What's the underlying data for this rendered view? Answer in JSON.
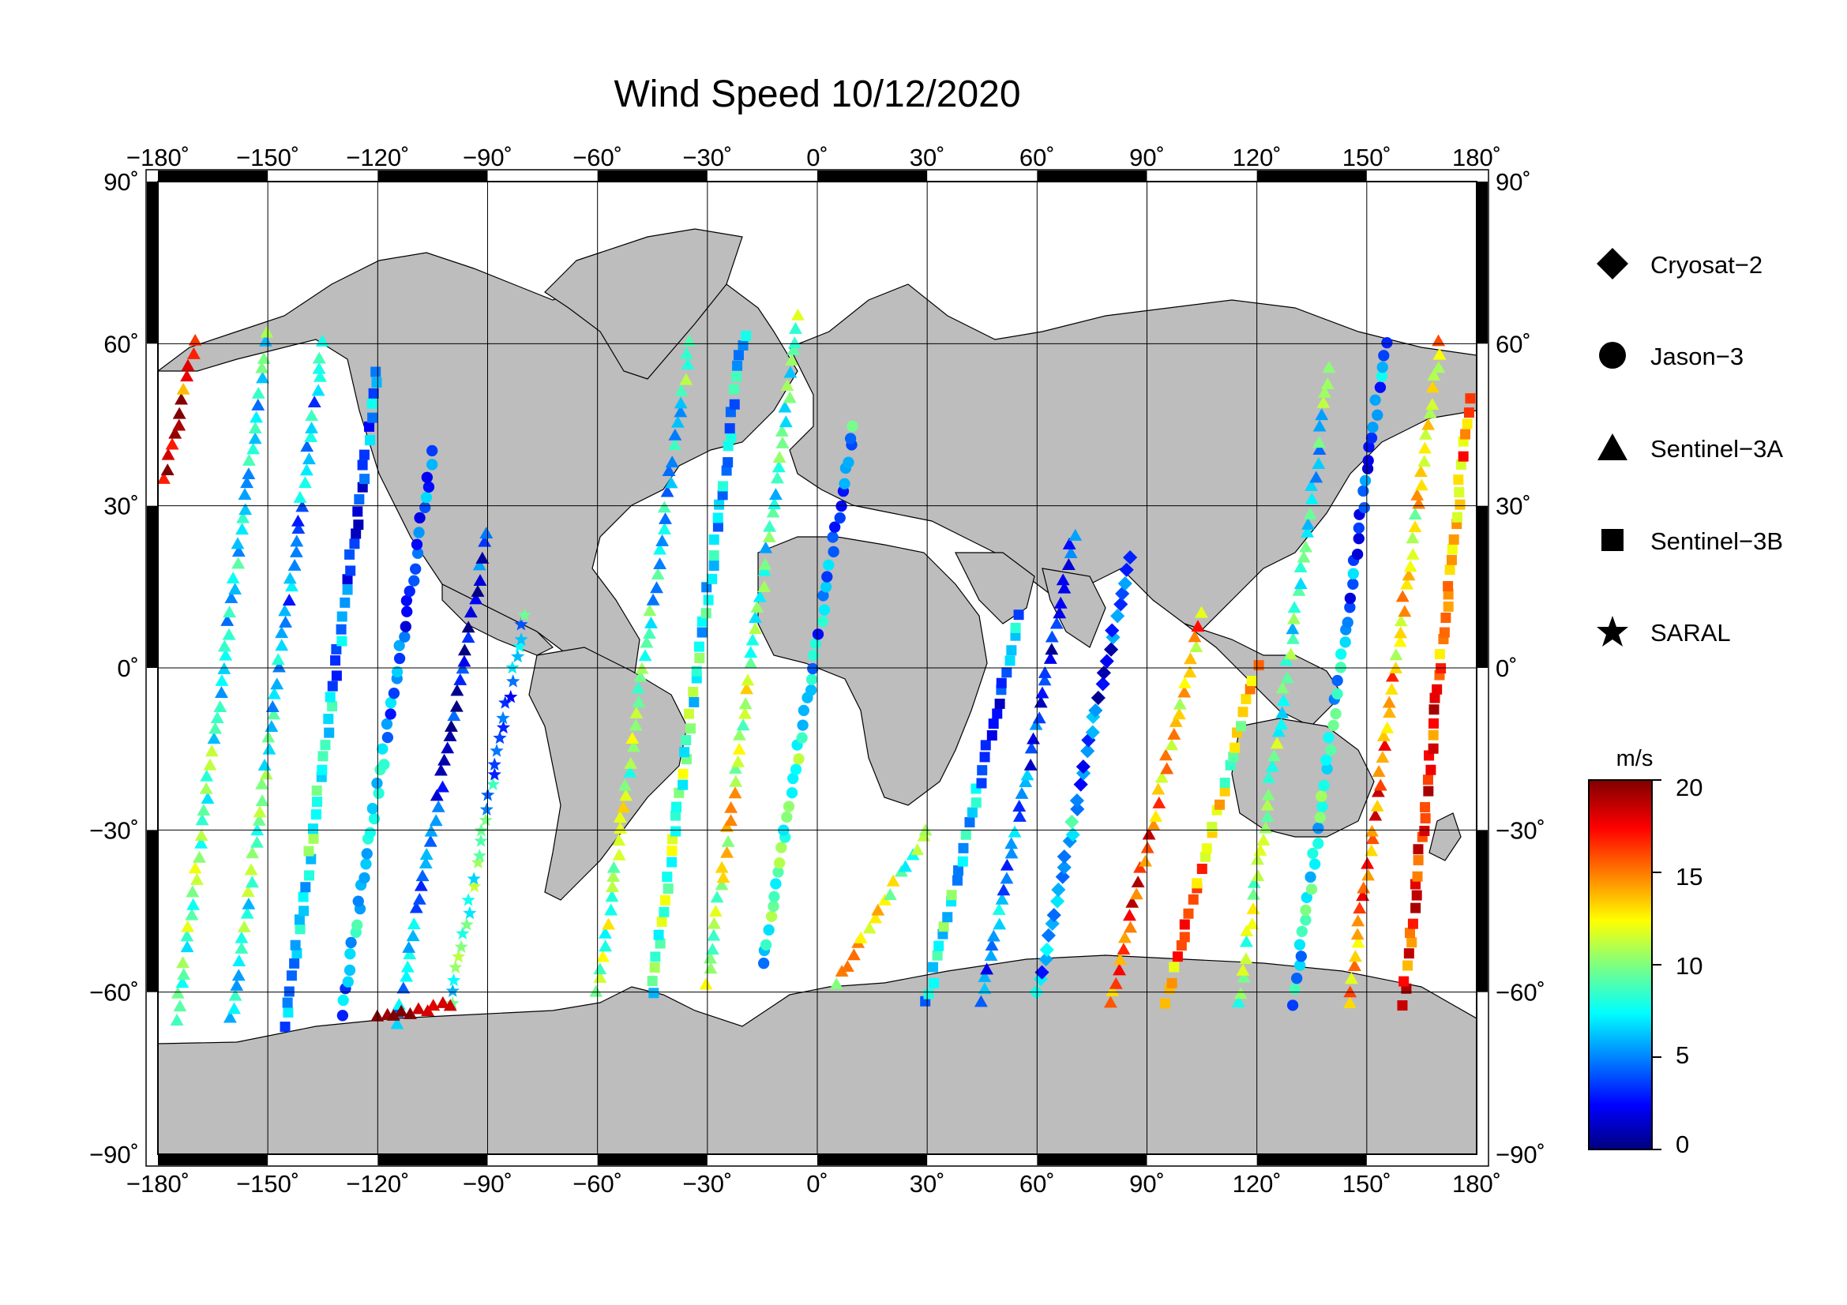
{
  "title": "Wind Speed 10/12/2020",
  "map": {
    "projection": "equirectangular",
    "lon_range": [
      -180,
      180
    ],
    "lat_range": [
      -90,
      90
    ],
    "lon_ticks": [
      "−180˚",
      "−150˚",
      "−120˚",
      "−90˚",
      "−60˚",
      "−30˚",
      "0˚",
      "30˚",
      "60˚",
      "90˚",
      "120˚",
      "150˚",
      "180˚"
    ],
    "lat_ticks": [
      "90˚",
      "60˚",
      "30˚",
      "0˚",
      "−30˚",
      "−60˚",
      "−90˚"
    ],
    "land_color": "#bdbdbd",
    "ocean_color": "#ffffff",
    "gridlines": true
  },
  "legend": {
    "items": [
      {
        "label": "Cryosat−2",
        "symbol": "diamond-icon"
      },
      {
        "label": "Jason−3",
        "symbol": "circle-icon"
      },
      {
        "label": "Sentinel−3A",
        "symbol": "triangle-icon"
      },
      {
        "label": "Sentinel−3B",
        "symbol": "square-icon"
      },
      {
        "label": "SARAL",
        "symbol": "star-icon"
      }
    ]
  },
  "colorbar": {
    "unit": "m/s",
    "min": 0,
    "max": 20,
    "ticks": [
      "20",
      "15",
      "10",
      "5",
      "0"
    ],
    "colormap": "jet"
  },
  "chart_data": {
    "type": "scatter",
    "variable": "wind speed",
    "units": "m/s",
    "value_range": [
      0,
      20
    ],
    "tracks": [
      {
        "satellite": "Sentinel−3A",
        "start": [
          -175,
          -65
        ],
        "end": [
          -150,
          62
        ],
        "mean_speed": 8
      },
      {
        "satellite": "Sentinel−3A",
        "start": [
          -160,
          -65
        ],
        "end": [
          -135,
          60
        ],
        "mean_speed": 7
      },
      {
        "satellite": "Sentinel−3B",
        "start": [
          -145,
          -66
        ],
        "end": [
          -120,
          55
        ],
        "mean_speed": 6
      },
      {
        "satellite": "Jason−3",
        "start": [
          -130,
          -64
        ],
        "end": [
          -105,
          40
        ],
        "mean_speed": 5
      },
      {
        "satellite": "Sentinel−3A",
        "start": [
          -115,
          -66
        ],
        "end": [
          -90,
          25
        ],
        "mean_speed": 4
      },
      {
        "satellite": "SARAL",
        "start": [
          -100,
          -62
        ],
        "end": [
          -80,
          10
        ],
        "mean_speed": 7
      },
      {
        "satellite": "Sentinel−3A",
        "start": [
          -60,
          -60
        ],
        "end": [
          -35,
          60
        ],
        "mean_speed": 9
      },
      {
        "satellite": "Sentinel−3B",
        "start": [
          -45,
          -60
        ],
        "end": [
          -20,
          62
        ],
        "mean_speed": 8
      },
      {
        "satellite": "Sentinel−3A",
        "start": [
          -30,
          -58
        ],
        "end": [
          -5,
          65
        ],
        "mean_speed": 10
      },
      {
        "satellite": "Jason−3",
        "start": [
          -15,
          -55
        ],
        "end": [
          10,
          45
        ],
        "mean_speed": 7
      },
      {
        "satellite": "Sentinel−3A",
        "start": [
          5,
          -58
        ],
        "end": [
          30,
          -30
        ],
        "mean_speed": 12
      },
      {
        "satellite": "Sentinel−3B",
        "start": [
          30,
          -62
        ],
        "end": [
          55,
          10
        ],
        "mean_speed": 6
      },
      {
        "satellite": "Sentinel−3A",
        "start": [
          45,
          -62
        ],
        "end": [
          70,
          25
        ],
        "mean_speed": 4
      },
      {
        "satellite": "Cryosat−2",
        "start": [
          60,
          -60
        ],
        "end": [
          85,
          20
        ],
        "mean_speed": 5
      },
      {
        "satellite": "Sentinel−3A",
        "start": [
          80,
          -62
        ],
        "end": [
          105,
          10
        ],
        "mean_speed": 15
      },
      {
        "satellite": "Sentinel−3B",
        "start": [
          95,
          -62
        ],
        "end": [
          120,
          0
        ],
        "mean_speed": 13
      },
      {
        "satellite": "Sentinel−3A",
        "start": [
          115,
          -62
        ],
        "end": [
          140,
          55
        ],
        "mean_speed": 9
      },
      {
        "satellite": "Jason−3",
        "start": [
          130,
          -62
        ],
        "end": [
          155,
          60
        ],
        "mean_speed": 6
      },
      {
        "satellite": "Sentinel−3A",
        "start": [
          145,
          -62
        ],
        "end": [
          170,
          60
        ],
        "mean_speed": 14
      },
      {
        "satellite": "Sentinel−3B",
        "start": [
          160,
          -62
        ],
        "end": [
          178,
          50
        ],
        "mean_speed": 16
      },
      {
        "satellite": "Sentinel−3A",
        "start": [
          -178,
          35
        ],
        "end": [
          -170,
          60
        ],
        "mean_speed": 18
      },
      {
        "satellite": "Sentinel−3A",
        "start": [
          -120,
          -65
        ],
        "end": [
          -100,
          -62
        ],
        "mean_speed": 19
      }
    ]
  }
}
